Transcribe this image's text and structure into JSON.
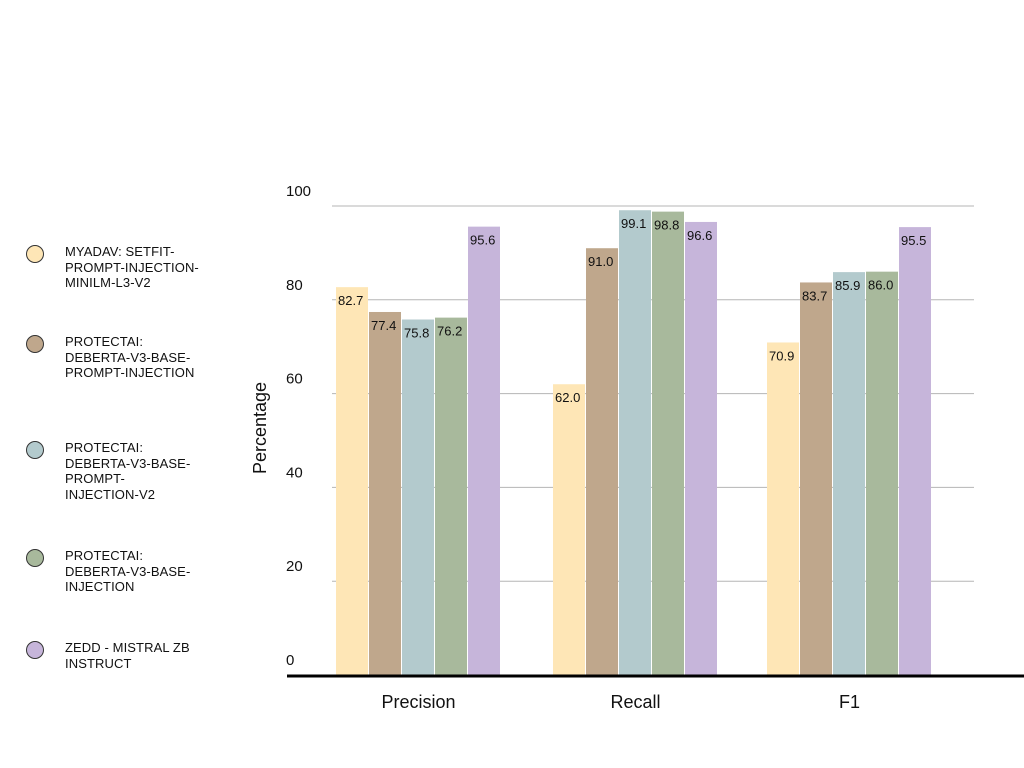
{
  "chart_data": {
    "type": "bar",
    "title": "",
    "xlabel": "",
    "ylabel": "Percentage",
    "ylim": [
      0,
      100
    ],
    "yticks": [
      0,
      20,
      40,
      60,
      80,
      100
    ],
    "grid": true,
    "legend_position": "left",
    "categories": [
      "Precision",
      "Recall",
      "F1"
    ],
    "series": [
      {
        "name": "MYADAV: SETFIT-PROMPT-INJECTION-MINILM-L3-V2",
        "legend_label": "MYADAV: SETFIT-\nPROMPT-INJECTION-\nMINILM-L3-V2",
        "color": "#FEE6B6",
        "values": [
          82.7,
          62.0,
          70.9
        ],
        "labels": [
          "82.7",
          "62.0",
          "70.9"
        ]
      },
      {
        "name": "PROTECTAI: DEBERTA-V3-BASE-PROMPT-INJECTION",
        "legend_label": "PROTECTAI:\nDEBERTA-V3-BASE-\nPROMPT-INJECTION",
        "color": "#BFA78C",
        "values": [
          77.4,
          91.0,
          83.7
        ],
        "labels": [
          "77.4",
          "91.0",
          "83.7"
        ]
      },
      {
        "name": "PROTECTAI: DEBERTA-V3-BASE-PROMPT-INJECTION-V2",
        "legend_label": "PROTECTAI:\nDEBERTA-V3-BASE-\nPROMPT-\nINJECTION-V2",
        "color": "#B3CACD",
        "values": [
          75.8,
          99.1,
          85.9
        ],
        "labels": [
          "75.8",
          "99.1",
          "85.9"
        ]
      },
      {
        "name": "PROTECTAI: DEBERTA-V3-BASE-INJECTION",
        "legend_label": "PROTECTAI:\nDEBERTA-V3-BASE-\nINJECTION",
        "color": "#A8B99C",
        "values": [
          76.2,
          98.8,
          86.0
        ],
        "labels": [
          "76.2",
          "98.8",
          "86.0"
        ]
      },
      {
        "name": "ZEDD - MISTRAL ZB INSTRUCT",
        "legend_label": "ZEDD - MISTRAL ZB\nINSTRUCT",
        "color": "#C6B5DA",
        "values": [
          95.6,
          96.6,
          95.5
        ],
        "labels": [
          "95.6",
          "96.6",
          "95.5"
        ]
      }
    ]
  }
}
